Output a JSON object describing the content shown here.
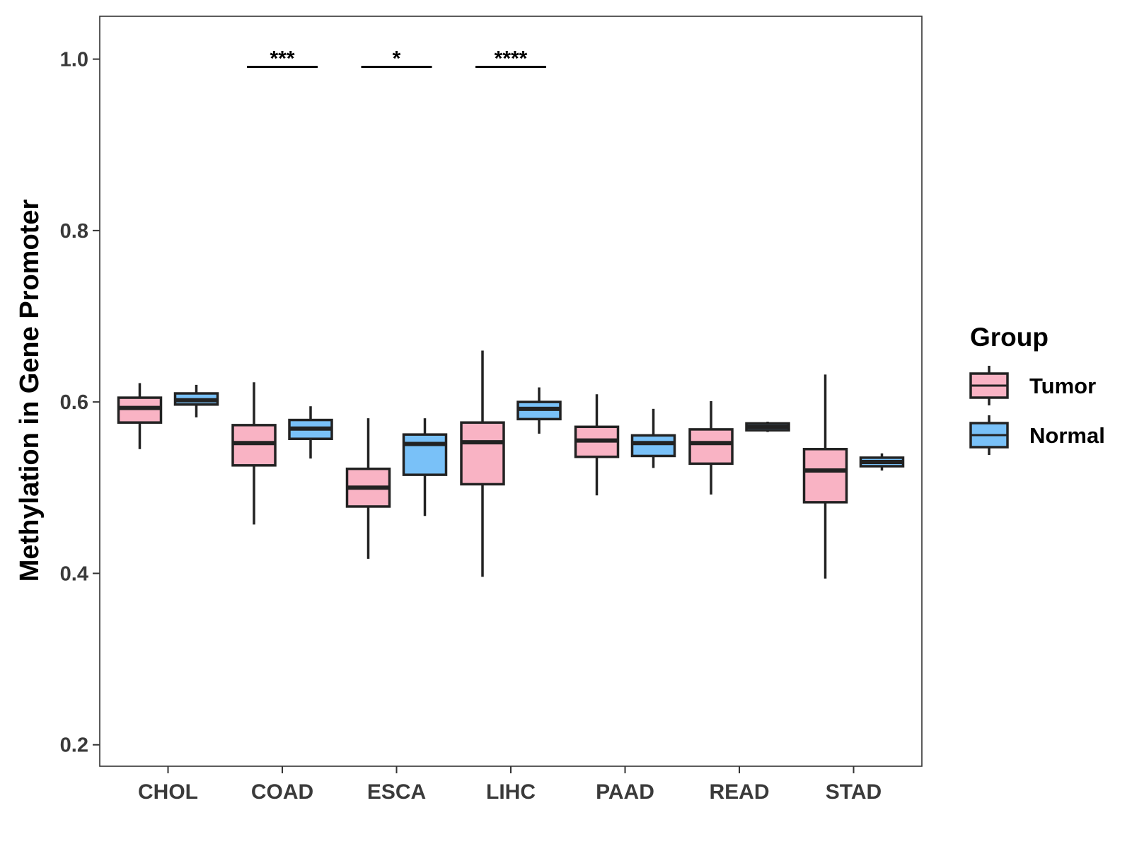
{
  "chart_data": {
    "type": "boxplot",
    "title": "",
    "xlabel": "",
    "ylabel": "Methylation in Gene Promoter",
    "ylim": [
      0.175,
      1.05
    ],
    "yticks": [
      0.2,
      0.4,
      0.6,
      0.8,
      1.0
    ],
    "ytick_labels": [
      "0.2",
      "0.4",
      "0.6",
      "0.8",
      "1.0"
    ],
    "grid": false,
    "categories": [
      "CHOL",
      "COAD",
      "ESCA",
      "LIHC",
      "PAAD",
      "READ",
      "STAD"
    ],
    "legend": {
      "title": "Group",
      "position": "right",
      "entries": [
        {
          "name": "Tumor",
          "color": "#F9B3C4"
        },
        {
          "name": "Normal",
          "color": "#79C1F8"
        }
      ]
    },
    "series": [
      {
        "name": "Tumor",
        "color": "#F9B3C4",
        "boxes": [
          {
            "category": "CHOL",
            "min": 0.545,
            "q1": 0.576,
            "median": 0.593,
            "q3": 0.605,
            "max": 0.622
          },
          {
            "category": "COAD",
            "min": 0.457,
            "q1": 0.526,
            "median": 0.552,
            "q3": 0.573,
            "max": 0.623
          },
          {
            "category": "ESCA",
            "min": 0.417,
            "q1": 0.478,
            "median": 0.5,
            "q3": 0.522,
            "max": 0.581
          },
          {
            "category": "LIHC",
            "min": 0.396,
            "q1": 0.504,
            "median": 0.553,
            "q3": 0.576,
            "max": 0.66
          },
          {
            "category": "PAAD",
            "min": 0.491,
            "q1": 0.536,
            "median": 0.555,
            "q3": 0.571,
            "max": 0.609
          },
          {
            "category": "READ",
            "min": 0.492,
            "q1": 0.528,
            "median": 0.552,
            "q3": 0.568,
            "max": 0.601
          },
          {
            "category": "STAD",
            "min": 0.394,
            "q1": 0.483,
            "median": 0.52,
            "q3": 0.545,
            "max": 0.632
          }
        ]
      },
      {
        "name": "Normal",
        "color": "#79C1F8",
        "boxes": [
          {
            "category": "CHOL",
            "min": 0.582,
            "q1": 0.597,
            "median": 0.602,
            "q3": 0.61,
            "max": 0.62
          },
          {
            "category": "COAD",
            "min": 0.534,
            "q1": 0.557,
            "median": 0.569,
            "q3": 0.579,
            "max": 0.595
          },
          {
            "category": "ESCA",
            "min": 0.467,
            "q1": 0.515,
            "median": 0.551,
            "q3": 0.562,
            "max": 0.581
          },
          {
            "category": "LIHC",
            "min": 0.563,
            "q1": 0.58,
            "median": 0.592,
            "q3": 0.6,
            "max": 0.617
          },
          {
            "category": "PAAD",
            "min": 0.523,
            "q1": 0.537,
            "median": 0.552,
            "q3": 0.561,
            "max": 0.592
          },
          {
            "category": "READ",
            "min": 0.565,
            "q1": 0.567,
            "median": 0.571,
            "q3": 0.575,
            "max": 0.577
          },
          {
            "category": "STAD",
            "min": 0.52,
            "q1": 0.525,
            "median": 0.53,
            "q3": 0.535,
            "max": 0.54
          }
        ]
      }
    ],
    "annotations": [
      {
        "category": "COAD",
        "text": "***",
        "y": 0.991
      },
      {
        "category": "ESCA",
        "text": "*",
        "y": 0.991
      },
      {
        "category": "LIHC",
        "text": "****",
        "y": 0.991
      }
    ]
  }
}
